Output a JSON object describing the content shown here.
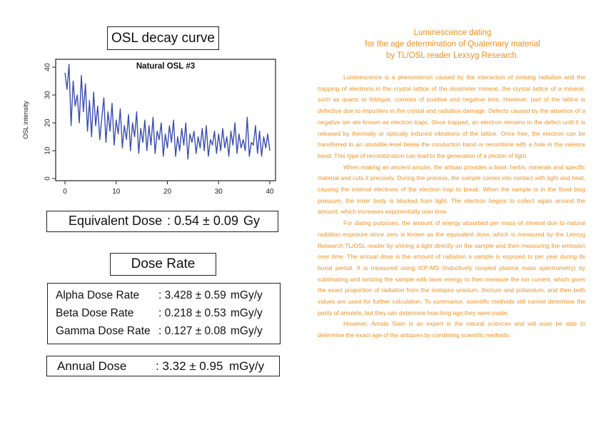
{
  "osl_title": "OSL decay curve",
  "chart_data": {
    "type": "line",
    "title": "Natural OSL #3",
    "xlabel": "",
    "ylabel": "OSL intensity",
    "xlim": [
      0,
      40
    ],
    "ylim": [
      0,
      40
    ],
    "xticks": [
      0,
      10,
      20,
      30,
      40
    ],
    "yticks": [
      0,
      10,
      20,
      30,
      40
    ],
    "grid": false,
    "line_color": "#3a4eb0",
    "x": [
      0.0,
      0.4,
      0.8,
      1.2,
      1.6,
      2.0,
      2.4,
      2.8,
      3.2,
      3.6,
      4.0,
      4.4,
      4.8,
      5.2,
      5.6,
      6.0,
      6.4,
      6.8,
      7.2,
      7.6,
      8.0,
      8.4,
      8.8,
      9.2,
      9.6,
      10.0,
      10.4,
      10.8,
      11.2,
      11.6,
      12.0,
      12.4,
      12.8,
      13.2,
      13.6,
      14.0,
      14.4,
      14.8,
      15.2,
      15.6,
      16.0,
      16.4,
      16.8,
      17.2,
      17.6,
      18.0,
      18.4,
      18.8,
      19.2,
      19.6,
      20.0,
      20.4,
      20.8,
      21.2,
      21.6,
      22.0,
      22.4,
      22.8,
      23.2,
      23.6,
      24.0,
      24.4,
      24.8,
      25.2,
      25.6,
      26.0,
      26.4,
      26.8,
      27.2,
      27.6,
      28.0,
      28.4,
      28.8,
      29.2,
      29.6,
      30.0,
      30.4,
      30.8,
      31.2,
      31.6,
      32.0,
      32.4,
      32.8,
      33.2,
      33.6,
      34.0,
      34.4,
      34.8,
      35.2,
      35.6,
      36.0,
      36.4,
      36.8,
      37.2,
      37.6,
      38.0,
      38.4,
      38.8,
      39.2,
      39.6,
      40.0
    ],
    "y": [
      38,
      32,
      41,
      19,
      35,
      26,
      30,
      20,
      37,
      24,
      34,
      17,
      28,
      15,
      31,
      19,
      26,
      14,
      22,
      29,
      13,
      24,
      17,
      27,
      12,
      21,
      16,
      25,
      11,
      19,
      14,
      23,
      10,
      20,
      15,
      24,
      9,
      18,
      13,
      21,
      10,
      19,
      12,
      22,
      9,
      17,
      14,
      20,
      8,
      16,
      11,
      19,
      13,
      21,
      8,
      15,
      10,
      18,
      12,
      20,
      7,
      16,
      13,
      17,
      9,
      15,
      11,
      18,
      10,
      19,
      8,
      14,
      12,
      17,
      9,
      16,
      10,
      18,
      11,
      15,
      8,
      17,
      12,
      20,
      9,
      16,
      11,
      14,
      10,
      22,
      8,
      13,
      12,
      19,
      9,
      17,
      8,
      15,
      11,
      16,
      10
    ]
  },
  "equivalent_dose": {
    "label": "Equivalent Dose",
    "value": ": 0.54 ± 0.09",
    "unit": "Gy"
  },
  "dose_rate_title": "Dose Rate",
  "dose_rates": [
    {
      "label": "Alpha Dose Rate",
      "value": ": 3.428 ± 0.59",
      "unit": "mGy/y"
    },
    {
      "label": "Beta Dose Rate",
      "value": ": 0.218 ± 0.53",
      "unit": "mGy/y"
    },
    {
      "label": "Gamma Dose Rate",
      "value": ": 0.127 ± 0.08",
      "unit": "mGy/y"
    }
  ],
  "annual_dose": {
    "label": "Annual Dose",
    "value": ": 3.32 ± 0.95",
    "unit": "mGy/y"
  },
  "info": {
    "title_lines": [
      "Luminescence dating",
      "for the age determination of Quaternary material",
      "by TL/OSL reader Lexsyg Research."
    ],
    "accent_color": "#f0901e",
    "paragraphs": [
      "Luminescence is a phenomenon caused by the interaction of ionising radiation and the trapping of electrons in the crystal lattice of the dosimeter mineral. the crystal lattice of a mineral, such as quartz or feldspar, consists of positive and negative ions. However, part of the lattice is defective due to impurities in the crystal and radiation damage. Defects caused by the absence of a negative ion are known as electron traps. Once trapped, an electron remains in the defect until it is released by thermally or optically induced vibrations of the lattice. Once free, the electron can be transferred to an unstable level below the conduction band or recombine with a hole in the valence band. This type of recombination can lead to the generation of a photon of light.",
      "When making an ancient amulet, the artisan provides a bowl, herbs, minerals and specific material and cuts it precisely. During the process, the sample comes into contact with light and heat, causing the internal electrons of the electron trap to break. When the sample is in the fixed blog pressure, the inner body is blocked from light. The electron begins to collect again around the amount, which increases exponentially over time.",
      "For dating purposes, the amount of energy absorbed per mass of mineral due to natural radiation exposure since zero is known as the equivalent dose, which is measured by the Lexsyg Research TL/OSL reader by shining a light directly on the sample and then measuring the emission over time. The annual dose is the amount of radiation a sample is exposed to per year during its burial period. It is measured using ICP-MS (inductively coupled plasma mass spectrometry) by sublimating and ionizing the sample with laser energy to then measure the ion current, which gives the exact proportion of radiation from the isotopes uranium, thorium and potassium, and then both values are used for further calculation. To summarise, scientific methods still cannot determine the purity of amulets, but they can determine how long ago they were made.",
      "However, Amata Siam is an expert in the natural sciences and will soon be able to determine the exact age of the antiques by combining scientific methods."
    ]
  }
}
